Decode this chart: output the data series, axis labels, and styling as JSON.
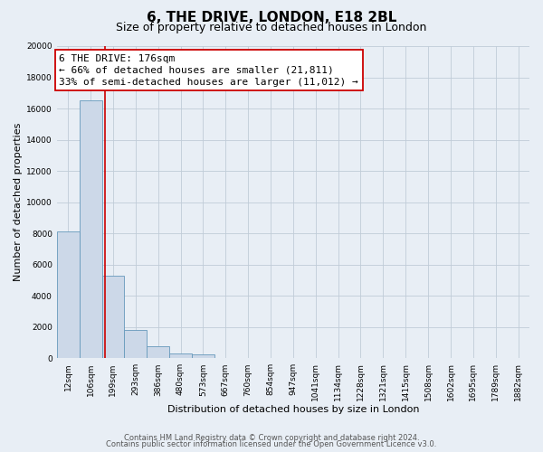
{
  "title": "6, THE DRIVE, LONDON, E18 2BL",
  "subtitle": "Size of property relative to detached houses in London",
  "xlabel": "Distribution of detached houses by size in London",
  "ylabel": "Number of detached properties",
  "categories": [
    "12sqm",
    "106sqm",
    "199sqm",
    "293sqm",
    "386sqm",
    "480sqm",
    "573sqm",
    "667sqm",
    "760sqm",
    "854sqm",
    "947sqm",
    "1041sqm",
    "1134sqm",
    "1228sqm",
    "1321sqm",
    "1415sqm",
    "1508sqm",
    "1602sqm",
    "1695sqm",
    "1789sqm",
    "1882sqm"
  ],
  "bar_values": [
    8100,
    16500,
    5300,
    1800,
    800,
    300,
    280,
    0,
    0,
    0,
    0,
    0,
    0,
    0,
    0,
    0,
    0,
    0,
    0,
    0,
    0
  ],
  "bar_color": "#ccd8e8",
  "bar_edge_color": "#6699bb",
  "vline_x": 1.65,
  "vline_color": "#cc0000",
  "vline_linewidth": 1.2,
  "annotation_line1": "6 THE DRIVE: 176sqm",
  "annotation_line2": "← 66% of detached houses are smaller (21,811)",
  "annotation_line3": "33% of semi-detached houses are larger (11,012) →",
  "ylim": [
    0,
    20000
  ],
  "yticks": [
    0,
    2000,
    4000,
    6000,
    8000,
    10000,
    12000,
    14000,
    16000,
    18000,
    20000
  ],
  "grid_color": "#c0ccd8",
  "background_color": "#e8eef5",
  "footer_line1": "Contains HM Land Registry data © Crown copyright and database right 2024.",
  "footer_line2": "Contains public sector information licensed under the Open Government Licence v3.0.",
  "title_fontsize": 11,
  "subtitle_fontsize": 9,
  "annotation_fontsize": 8,
  "tick_fontsize": 6.5,
  "axis_label_fontsize": 8,
  "footer_fontsize": 6
}
